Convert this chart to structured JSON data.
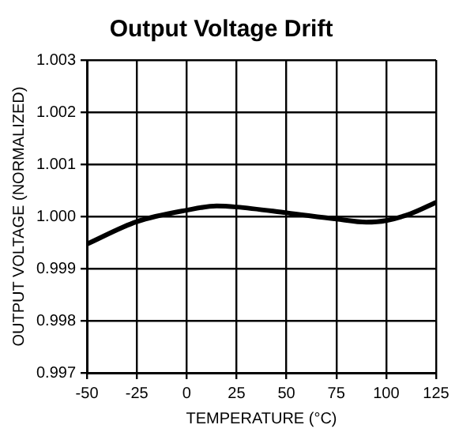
{
  "chart_data": {
    "type": "line",
    "title": "Output Voltage Drift",
    "xlabel": "TEMPERATURE (°C)",
    "ylabel": "OUTPUT VOLTAGE (NORMALIZED)",
    "x": [
      -50,
      -25,
      0,
      15,
      25,
      50,
      75,
      90,
      100,
      112,
      125
    ],
    "series": [
      {
        "color": "#000000",
        "values": [
          0.99947,
          0.9999,
          1.00012,
          1.0002,
          1.00018,
          1.00007,
          0.99995,
          0.99989,
          0.99992,
          1.00005,
          1.00027
        ]
      }
    ],
    "xlim": [
      -50,
      125
    ],
    "xticks": [
      -50,
      -25,
      0,
      25,
      50,
      75,
      100,
      125
    ],
    "ylim": [
      0.997,
      1.003
    ],
    "yticks": [
      {
        "value": 0.997,
        "label": "0.997"
      },
      {
        "value": 0.998,
        "label": "0.998"
      },
      {
        "value": 0.999,
        "label": "0.999"
      },
      {
        "value": 1.0,
        "label": "1.000"
      },
      {
        "value": 1.001,
        "label": "1.001"
      },
      {
        "value": 1.002,
        "label": "1.002"
      },
      {
        "value": 1.003,
        "label": "1.003"
      }
    ],
    "grid": true,
    "legend": false,
    "marker": "none",
    "line_style": "solid"
  }
}
